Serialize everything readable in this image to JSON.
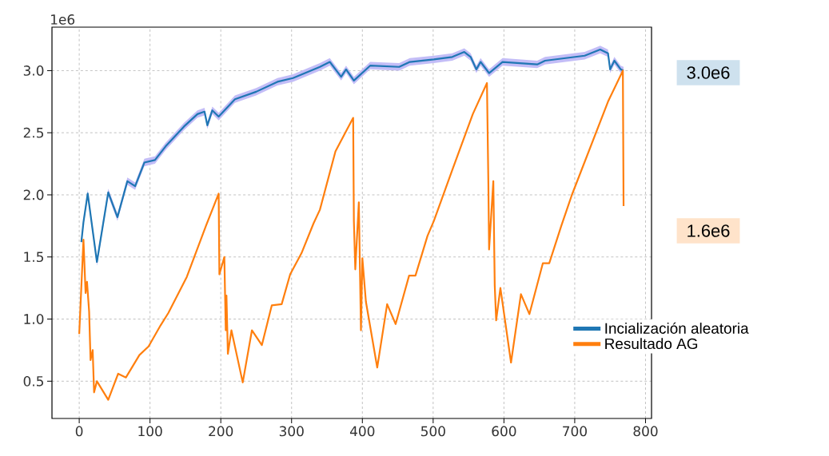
{
  "chart_data": {
    "type": "line",
    "annotations": [
      "1e6",
      "3.0e6",
      "1.6e6"
    ],
    "xlim": [
      -38.5,
      808.5
    ],
    "ylim": [
      0.2,
      3.35
    ],
    "xticks": [
      0,
      100,
      200,
      300,
      400,
      500,
      600,
      700,
      800
    ],
    "yticks": [
      0.5,
      {
        "value": 1,
        "label": "1.0"
      },
      1.5,
      {
        "value": 2,
        "label": "2.0"
      },
      2.5,
      {
        "value": 3,
        "label": "3.0"
      }
    ],
    "grid": true,
    "legend": "right",
    "series": [
      {
        "name": "Incialización aleatoria",
        "color": "#1f77b4",
        "x": [
          3,
          6,
          12,
          25,
          41,
          54,
          68,
          79,
          92,
          107,
          122,
          148,
          167,
          177,
          181,
          188,
          197,
          220,
          250,
          280,
          302,
          340,
          354,
          370,
          377,
          388,
          411,
          452,
          467,
          501,
          527,
          544,
          553,
          561,
          567,
          579,
          598,
          647,
          658,
          714,
          736,
          747,
          750,
          756,
          765,
          769
        ],
        "values": [
          1.62,
          1.78,
          2.01,
          1.46,
          2.02,
          1.82,
          2.11,
          2.07,
          2.26,
          2.28,
          2.39,
          2.55,
          2.65,
          2.67,
          2.56,
          2.68,
          2.63,
          2.77,
          2.83,
          2.91,
          2.94,
          3.03,
          3.07,
          2.95,
          3.01,
          2.92,
          3.04,
          3.03,
          3.07,
          3.09,
          3.11,
          3.15,
          3.11,
          3.01,
          3.07,
          2.98,
          3.07,
          3.05,
          3.08,
          3.12,
          3.17,
          3.14,
          3.01,
          3.08,
          3.01,
          3.0
        ],
        "lower": [
          1.59,
          1.75,
          1.98,
          1.43,
          1.99,
          1.79,
          2.08,
          2.04,
          2.23,
          2.25,
          2.36,
          2.52,
          2.62,
          2.64,
          2.53,
          2.65,
          2.6,
          2.74,
          2.8,
          2.88,
          2.91,
          3.0,
          3.04,
          2.92,
          2.98,
          2.89,
          3.01,
          3.0,
          3.04,
          3.06,
          3.08,
          3.12,
          3.08,
          2.98,
          3.04,
          2.95,
          3.04,
          3.02,
          3.05,
          3.09,
          3.14,
          3.11,
          2.98,
          3.05,
          2.98,
          2.97
        ],
        "upper": [
          1.65,
          1.81,
          2.04,
          1.49,
          2.05,
          1.85,
          2.14,
          2.1,
          2.29,
          2.31,
          2.42,
          2.58,
          2.68,
          2.7,
          2.59,
          2.71,
          2.66,
          2.8,
          2.86,
          2.94,
          2.97,
          3.06,
          3.1,
          2.98,
          3.04,
          2.95,
          3.07,
          3.06,
          3.1,
          3.12,
          3.14,
          3.18,
          3.14,
          3.04,
          3.1,
          3.01,
          3.1,
          3.08,
          3.11,
          3.15,
          3.2,
          3.17,
          3.04,
          3.11,
          3.04,
          3.03
        ]
      },
      {
        "name": "Resultado AG",
        "color": "#ff7f0e",
        "x": [
          0,
          6,
          9,
          11,
          14,
          16,
          19,
          21,
          25,
          41,
          55,
          66,
          85,
          98,
          115,
          126,
          152,
          177,
          179,
          197,
          198,
          205,
          207,
          208,
          210,
          215,
          231,
          244,
          258,
          272,
          286,
          298,
          314,
          331,
          340,
          362,
          387,
          388,
          390,
          395,
          398,
          400,
          405,
          421,
          435,
          447,
          466,
          475,
          492,
          501,
          527,
          556,
          576,
          578,
          579,
          585,
          587,
          589,
          595,
          610,
          624,
          636,
          655,
          664,
          681,
          696,
          747,
          768,
          769
        ],
        "values": [
          0.88,
          1.64,
          1.21,
          1.3,
          1.06,
          0.67,
          0.75,
          0.41,
          0.5,
          0.35,
          0.56,
          0.53,
          0.71,
          0.78,
          0.95,
          1.05,
          1.34,
          1.72,
          1.75,
          2.01,
          1.36,
          1.5,
          0.91,
          1.19,
          0.72,
          0.91,
          0.49,
          0.91,
          0.79,
          1.11,
          1.12,
          1.36,
          1.53,
          1.77,
          1.88,
          2.35,
          2.62,
          1.79,
          1.4,
          1.94,
          0.91,
          1.49,
          1.14,
          0.61,
          1.12,
          0.96,
          1.35,
          1.35,
          1.67,
          1.79,
          2.2,
          2.65,
          2.9,
          2.09,
          1.56,
          2.11,
          1.27,
          0.99,
          1.25,
          0.65,
          1.2,
          1.04,
          1.45,
          1.45,
          1.75,
          2.0,
          2.75,
          3.0,
          1.91
        ]
      }
    ]
  }
}
